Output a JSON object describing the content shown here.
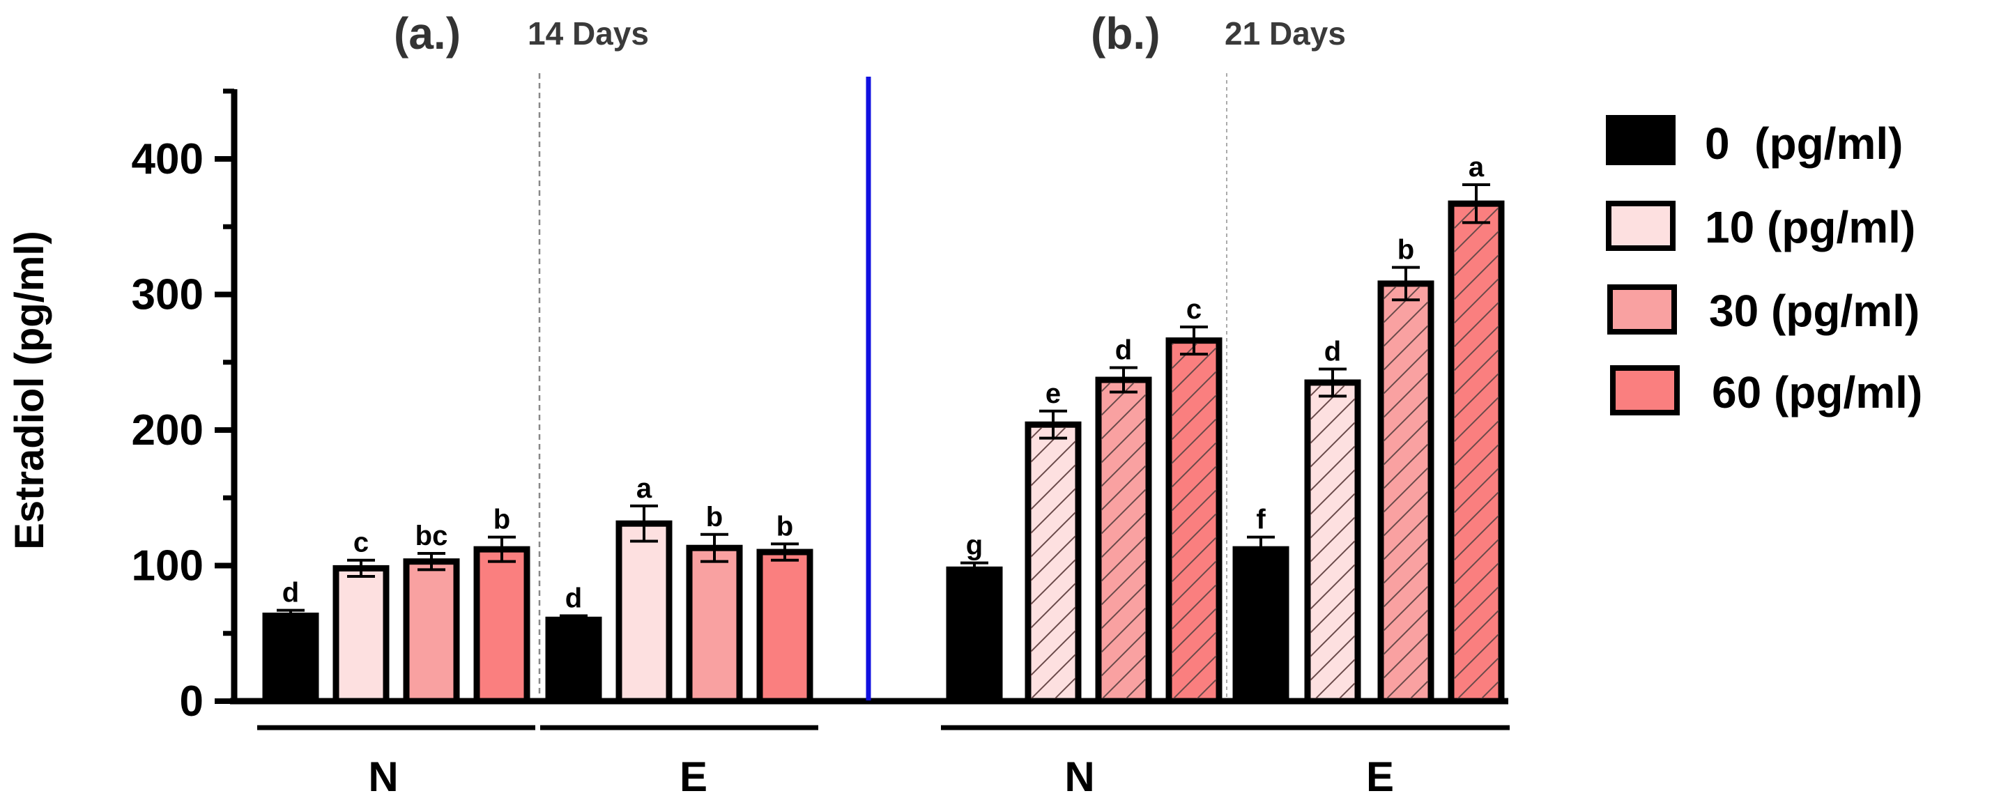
{
  "chart_data": {
    "type": "bar",
    "ylabel": "Estradiol (pg/ml)",
    "ylim": [
      0,
      450
    ],
    "yticks": [
      0,
      100,
      200,
      300,
      400
    ],
    "legend": {
      "position": "right",
      "entries": [
        "0  (pg/ml)",
        "10 (pg/ml)",
        "30 (pg/ml)",
        "60 (pg/ml)"
      ]
    },
    "colors": [
      "#000000",
      "#FDE0E0",
      "#F9A1A1",
      "#FA7F7F"
    ],
    "panels": [
      {
        "label": "(a.)",
        "period": "14 Days",
        "hatched": false,
        "groups": [
          {
            "name": "N",
            "values": [
              63,
              98,
              103,
              112
            ],
            "errors": [
              4,
              6,
              6,
              9
            ],
            "letters": [
              "d",
              "c",
              "bc",
              "b"
            ]
          },
          {
            "name": "E",
            "values": [
              60,
              131,
              113,
              110
            ],
            "errors": [
              3,
              13,
              10,
              6
            ],
            "letters": [
              "d",
              "a",
              "b",
              "b"
            ]
          }
        ]
      },
      {
        "label": "(b.)",
        "period": "21 Days",
        "hatched": true,
        "groups": [
          {
            "name": "N",
            "values": [
              97,
              204,
              237,
              266
            ],
            "errors": [
              5,
              10,
              9,
              10
            ],
            "letters": [
              "g",
              "e",
              "d",
              "c"
            ]
          },
          {
            "name": "E",
            "values": [
              112,
              235,
              308,
              367
            ],
            "errors": [
              9,
              10,
              12,
              14
            ],
            "letters": [
              "f",
              "d",
              "b",
              "a"
            ]
          }
        ]
      }
    ]
  }
}
